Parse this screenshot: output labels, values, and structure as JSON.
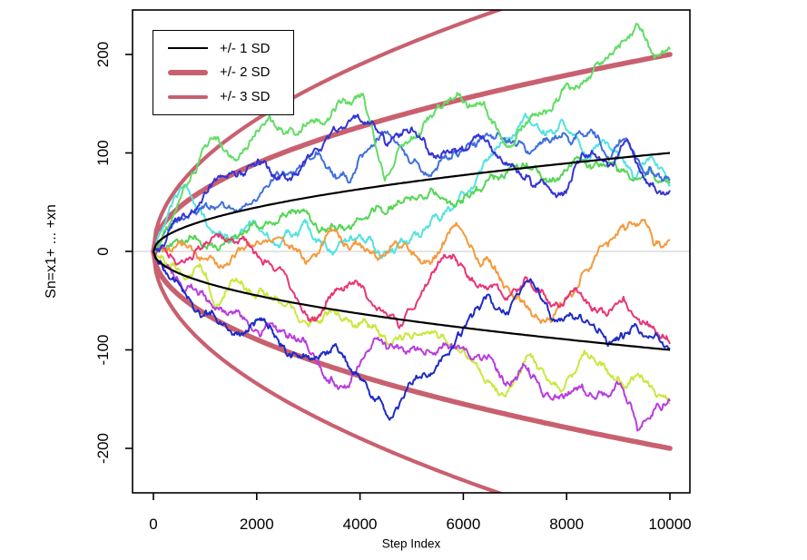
{
  "chart_data": {
    "type": "line",
    "title": "",
    "xlabel": "Step Index",
    "ylabel": "Sn=x1+ ... +xn",
    "xlim": [
      -400,
      10400
    ],
    "ylim": [
      -245,
      245
    ],
    "x_ticks": [
      0,
      2000,
      4000,
      6000,
      8000,
      10000
    ],
    "y_ticks": [
      200,
      100,
      0,
      -100,
      -200
    ],
    "grid": false,
    "zero_line_color": "#c9c9c9",
    "axis_color": "#000000",
    "envelope_color": "#c9606f",
    "legend": {
      "position": "top-left",
      "items": [
        {
          "label": "+/- 1 SD",
          "color": "#000000",
          "line_width": 2
        },
        {
          "label": "+/- 2 SD",
          "color": "#c9606f",
          "line_width": 6
        },
        {
          "label": "+/- 3 SD",
          "color": "#c9606f",
          "line_width": 4.5
        }
      ]
    },
    "envelopes": [
      {
        "name": "plus-minus-3-sd",
        "k": 3,
        "color": "#c9606f",
        "width": 4.2
      },
      {
        "name": "plus-minus-2-sd",
        "k": 2,
        "color": "#c9606f",
        "width": 5.6
      },
      {
        "name": "plus-minus-1-sd",
        "k": 1,
        "color": "#000000",
        "width": 2.2
      }
    ],
    "series": [
      {
        "name": "walk-cyan",
        "color": "#54e2e0",
        "width": 2,
        "points": [
          [
            0,
            0
          ],
          [
            400,
            55
          ],
          [
            650,
            65
          ],
          [
            900,
            42
          ],
          [
            1500,
            10
          ],
          [
            2000,
            26
          ],
          [
            2400,
            6
          ],
          [
            2900,
            30
          ],
          [
            3400,
            2
          ],
          [
            3900,
            13
          ],
          [
            4400,
            -6
          ],
          [
            4880,
            9
          ],
          [
            5460,
            38
          ],
          [
            5990,
            60
          ],
          [
            6500,
            96
          ],
          [
            7200,
            140
          ],
          [
            7600,
            118
          ],
          [
            7900,
            134
          ],
          [
            8400,
            92
          ],
          [
            8800,
            110
          ],
          [
            9300,
            72
          ],
          [
            9600,
            95
          ],
          [
            10000,
            66
          ]
        ]
      },
      {
        "name": "walk-green-low",
        "color": "#55d555",
        "width": 2,
        "points": [
          [
            0,
            0
          ],
          [
            700,
            16
          ],
          [
            1300,
            6
          ],
          [
            2000,
            25
          ],
          [
            2700,
            42
          ],
          [
            3300,
            22
          ],
          [
            3900,
            30
          ],
          [
            4600,
            46
          ],
          [
            5200,
            56
          ],
          [
            5800,
            47
          ],
          [
            6400,
            66
          ],
          [
            7000,
            86
          ],
          [
            7600,
            74
          ],
          [
            8200,
            96
          ],
          [
            8700,
            88
          ],
          [
            9200,
            77
          ],
          [
            9600,
            86
          ],
          [
            10000,
            69
          ]
        ]
      },
      {
        "name": "walk-orange",
        "color": "#f49a3c",
        "width": 2,
        "points": [
          [
            0,
            0
          ],
          [
            500,
            10
          ],
          [
            1300,
            -14
          ],
          [
            2100,
            8
          ],
          [
            2500,
            14
          ],
          [
            3000,
            -10
          ],
          [
            3500,
            22
          ],
          [
            4100,
            0
          ],
          [
            4700,
            9
          ],
          [
            5300,
            -10
          ],
          [
            5900,
            26
          ],
          [
            6300,
            -12
          ],
          [
            6800,
            -36
          ],
          [
            7300,
            -60
          ],
          [
            7700,
            -72
          ],
          [
            8100,
            -46
          ],
          [
            8500,
            -12
          ],
          [
            8900,
            14
          ],
          [
            9450,
            32
          ],
          [
            9700,
            6
          ],
          [
            10000,
            12
          ]
        ]
      },
      {
        "name": "walk-chartreuse",
        "color": "#c9e83e",
        "width": 2,
        "points": [
          [
            0,
            0
          ],
          [
            600,
            -28
          ],
          [
            900,
            -13
          ],
          [
            1200,
            -56
          ],
          [
            1700,
            -30
          ],
          [
            2200,
            -42
          ],
          [
            3000,
            -76
          ],
          [
            3500,
            -60
          ],
          [
            4000,
            -73
          ],
          [
            4500,
            -90
          ],
          [
            5200,
            -85
          ],
          [
            5800,
            -96
          ],
          [
            6300,
            -120
          ],
          [
            6870,
            -142
          ],
          [
            7300,
            -104
          ],
          [
            7900,
            -142
          ],
          [
            8300,
            -105
          ],
          [
            8650,
            -112
          ],
          [
            9100,
            -138
          ],
          [
            9400,
            -126
          ],
          [
            9750,
            -148
          ],
          [
            10000,
            -154
          ]
        ]
      },
      {
        "name": "walk-magenta",
        "color": "#b93ddd",
        "width": 2,
        "points": [
          [
            0,
            0
          ],
          [
            400,
            -26
          ],
          [
            600,
            -42
          ],
          [
            950,
            -40
          ],
          [
            1420,
            -64
          ],
          [
            2130,
            -80
          ],
          [
            2600,
            -88
          ],
          [
            3100,
            -104
          ],
          [
            3580,
            -140
          ],
          [
            4230,
            -95
          ],
          [
            4760,
            -98
          ],
          [
            5460,
            -105
          ],
          [
            5770,
            -94
          ],
          [
            6340,
            -110
          ],
          [
            6870,
            -134
          ],
          [
            7200,
            -116
          ],
          [
            7700,
            -150
          ],
          [
            8300,
            -135
          ],
          [
            8700,
            -146
          ],
          [
            9040,
            -134
          ],
          [
            9370,
            -182
          ],
          [
            9700,
            -160
          ],
          [
            10000,
            -152
          ]
        ]
      },
      {
        "name": "walk-crimson",
        "color": "#e83577",
        "width": 2,
        "points": [
          [
            0,
            0
          ],
          [
            400,
            -8
          ],
          [
            1000,
            7
          ],
          [
            1700,
            13
          ],
          [
            2200,
            -10
          ],
          [
            2600,
            -28
          ],
          [
            3000,
            -70
          ],
          [
            3500,
            -42
          ],
          [
            4000,
            -33
          ],
          [
            4400,
            -60
          ],
          [
            4760,
            -78
          ],
          [
            5200,
            -40
          ],
          [
            5700,
            -6
          ],
          [
            6200,
            -30
          ],
          [
            6870,
            -46
          ],
          [
            7200,
            -26
          ],
          [
            7700,
            -56
          ],
          [
            8200,
            -40
          ],
          [
            8700,
            -62
          ],
          [
            9100,
            -46
          ],
          [
            9500,
            -72
          ],
          [
            9740,
            -84
          ],
          [
            10000,
            -94
          ]
        ]
      },
      {
        "name": "walk-navy",
        "color": "#1f2cc4",
        "width": 2,
        "points": [
          [
            0,
            0
          ],
          [
            600,
            -42
          ],
          [
            900,
            -64
          ],
          [
            1130,
            -60
          ],
          [
            1550,
            -84
          ],
          [
            2000,
            -70
          ],
          [
            2480,
            -96
          ],
          [
            3000,
            -106
          ],
          [
            3530,
            -94
          ],
          [
            4000,
            -130
          ],
          [
            4460,
            -160
          ],
          [
            4640,
            -168
          ],
          [
            4940,
            -134
          ],
          [
            5340,
            -125
          ],
          [
            5900,
            -82
          ],
          [
            6470,
            -44
          ],
          [
            6870,
            -64
          ],
          [
            7300,
            -28
          ],
          [
            7800,
            -70
          ],
          [
            8400,
            -70
          ],
          [
            8800,
            -96
          ],
          [
            9300,
            -76
          ],
          [
            9600,
            -86
          ],
          [
            10000,
            -98
          ]
        ]
      },
      {
        "name": "walk-royal-blue",
        "color": "#3f6fdd",
        "width": 2,
        "points": [
          [
            0,
            0
          ],
          [
            700,
            38
          ],
          [
            1300,
            48
          ],
          [
            2050,
            56
          ],
          [
            2780,
            84
          ],
          [
            3200,
            100
          ],
          [
            3830,
            74
          ],
          [
            4400,
            118
          ],
          [
            5240,
            78
          ],
          [
            5600,
            96
          ],
          [
            6100,
            110
          ],
          [
            6700,
            120
          ],
          [
            7300,
            100
          ],
          [
            7800,
            115
          ],
          [
            8450,
            122
          ],
          [
            8800,
            96
          ],
          [
            9100,
            114
          ],
          [
            9500,
            80
          ],
          [
            10000,
            72
          ]
        ]
      },
      {
        "name": "walk-green-high",
        "color": "#62dd66",
        "width": 2,
        "points": [
          [
            0,
            0
          ],
          [
            500,
            52
          ],
          [
            1100,
            115
          ],
          [
            1600,
            92
          ],
          [
            2250,
            138
          ],
          [
            2600,
            120
          ],
          [
            3000,
            130
          ],
          [
            3500,
            144
          ],
          [
            4060,
            160
          ],
          [
            4480,
            72
          ],
          [
            5300,
            136
          ],
          [
            5900,
            160
          ],
          [
            6400,
            152
          ],
          [
            6900,
            106
          ],
          [
            7400,
            140
          ],
          [
            7800,
            155
          ],
          [
            8300,
            170
          ],
          [
            8800,
            196
          ],
          [
            9100,
            214
          ],
          [
            9400,
            228
          ],
          [
            9700,
            196
          ],
          [
            10000,
            205
          ]
        ]
      },
      {
        "name": "walk-deep-blue",
        "color": "#3534d2",
        "width": 2,
        "points": [
          [
            0,
            0
          ],
          [
            450,
            32
          ],
          [
            1000,
            60
          ],
          [
            1600,
            76
          ],
          [
            2100,
            90
          ],
          [
            2600,
            72
          ],
          [
            3100,
            102
          ],
          [
            3880,
            138
          ],
          [
            4500,
            108
          ],
          [
            5000,
            126
          ],
          [
            5600,
            100
          ],
          [
            6200,
            116
          ],
          [
            6800,
            90
          ],
          [
            7300,
            72
          ],
          [
            7800,
            55
          ],
          [
            8300,
            100
          ],
          [
            8800,
            86
          ],
          [
            9200,
            110
          ],
          [
            9700,
            66
          ],
          [
            10000,
            62
          ]
        ]
      }
    ]
  }
}
